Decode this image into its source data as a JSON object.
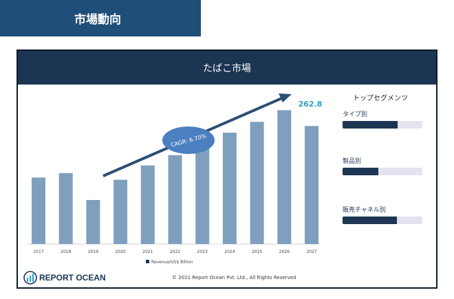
{
  "header": {
    "title": "市場動向"
  },
  "slide": {
    "title": "たばこ市場"
  },
  "chart_data": {
    "type": "bar",
    "categories": [
      "2017",
      "2018",
      "2019",
      "2020",
      "2021",
      "2022",
      "2023",
      "2024",
      "2025",
      "2026",
      "2027"
    ],
    "values": [
      148,
      158,
      98,
      143,
      175,
      198,
      218,
      248,
      272,
      298,
      262.8
    ],
    "value_label": "262.8",
    "legend": "Revenue/US$ Billion",
    "legend_position": "bottom",
    "annotation": "CAGR: 6.70%",
    "title": "",
    "xlabel": "",
    "ylabel": "",
    "colors": {
      "bar": "#7f9fbf",
      "arrow": "#2b4f73",
      "ellipse": "#4a7fc0",
      "value_label": "#2aa3c9"
    }
  },
  "segments": {
    "title": "トップセグメンツ",
    "items": [
      {
        "label": "タイプ別",
        "fraction": 0.69
      },
      {
        "label": "製品別",
        "fraction": 0.45
      },
      {
        "label": "販売チャネル別",
        "fraction": 0.68
      }
    ]
  },
  "footer": {
    "logo_text": "REPORT OCEAN",
    "copyright": "© 2021 Report Ocean Pvt. Ltd., All Rights Reserved"
  }
}
